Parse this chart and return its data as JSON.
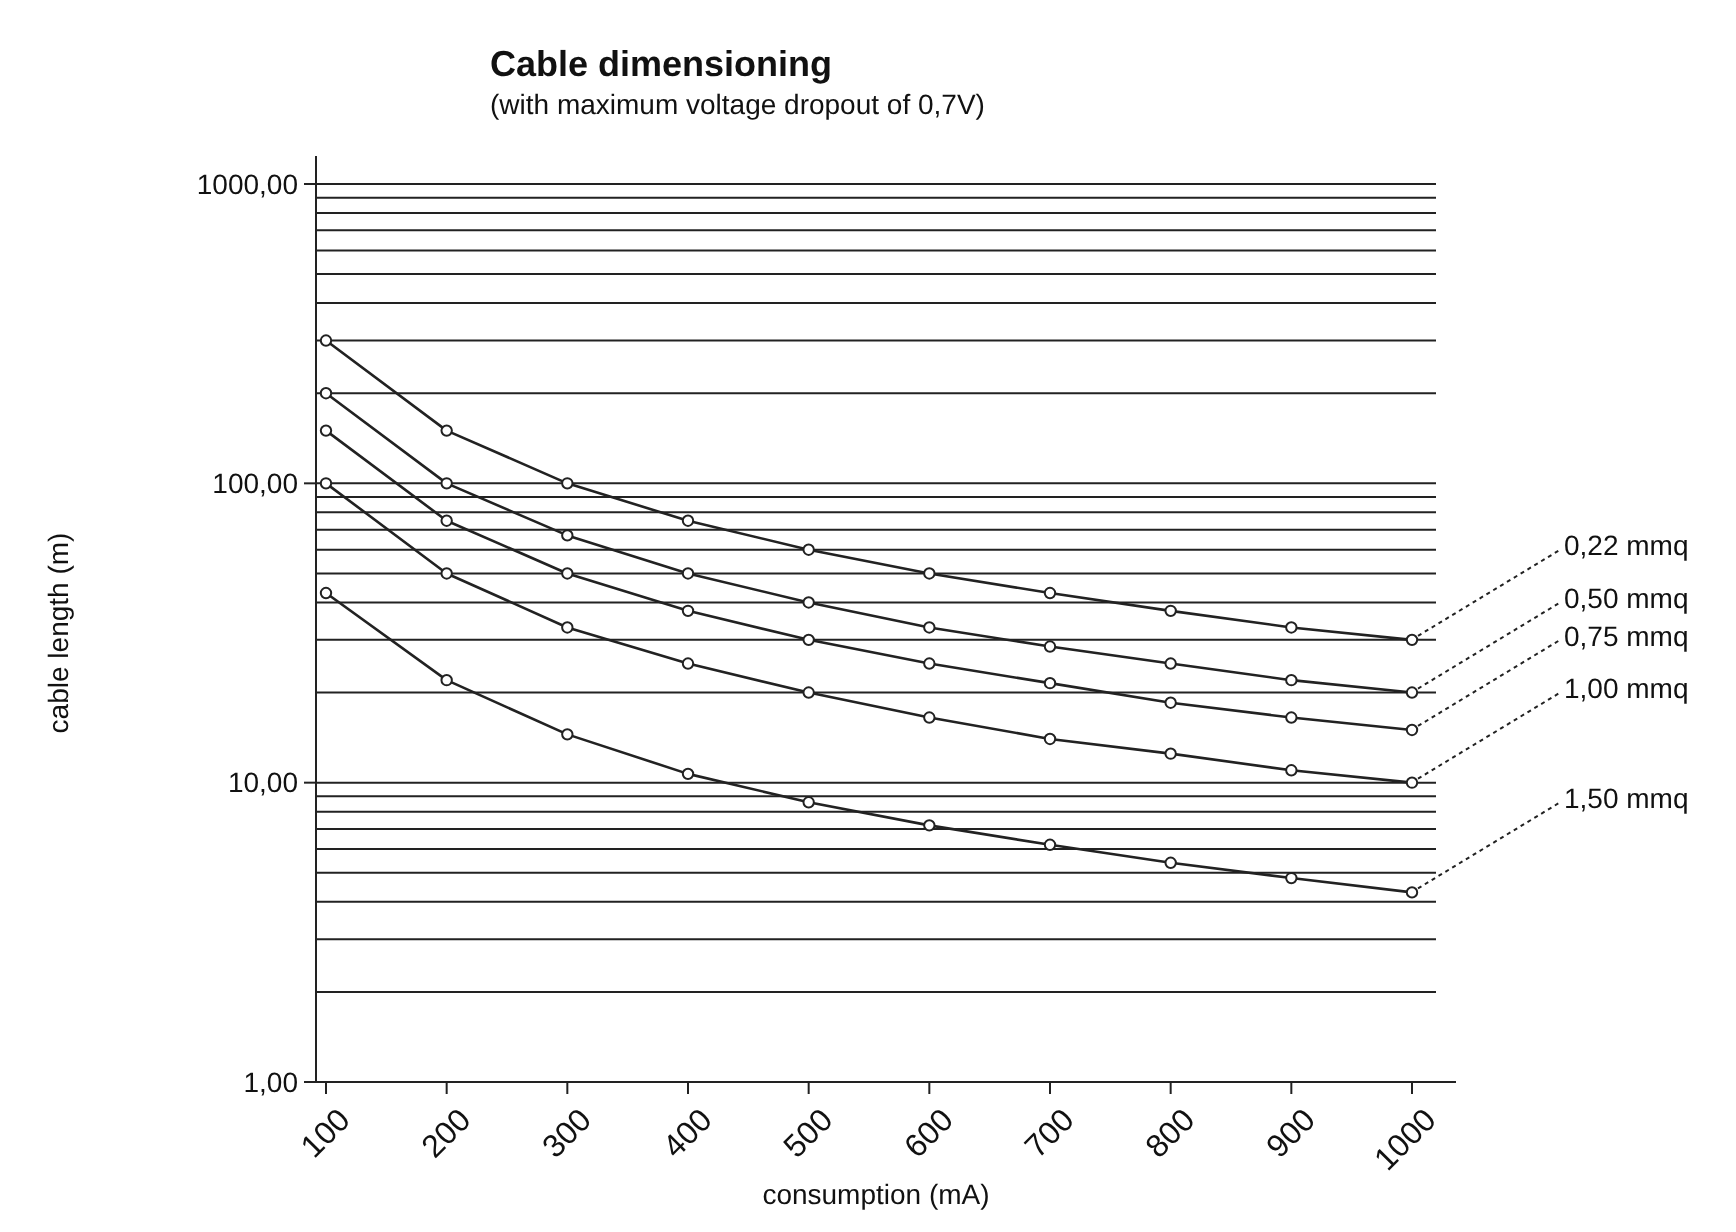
{
  "chart_data": {
    "type": "line",
    "title": "Cable dimensioning",
    "subtitle": "(with maximum voltage dropout of 0,7V)",
    "xlabel": "consumption (mA)",
    "ylabel": "cable length (m)",
    "categories": [
      "100",
      "200",
      "300",
      "400",
      "500",
      "600",
      "700",
      "800",
      "900",
      "1000"
    ],
    "log": "y",
    "ylim": [
      1,
      1000
    ],
    "yticks": [
      {
        "value": 1,
        "label": "1,00"
      },
      {
        "value": 2,
        "label": null
      },
      {
        "value": 3,
        "label": null
      },
      {
        "value": 4,
        "label": null
      },
      {
        "value": 5,
        "label": null
      },
      {
        "value": 6,
        "label": null
      },
      {
        "value": 7,
        "label": null
      },
      {
        "value": 8,
        "label": null
      },
      {
        "value": 9,
        "label": null
      },
      {
        "value": 10,
        "label": "10,00"
      },
      {
        "value": 20,
        "label": null
      },
      {
        "value": 30,
        "label": null
      },
      {
        "value": 40,
        "label": null
      },
      {
        "value": 50,
        "label": null
      },
      {
        "value": 60,
        "label": null
      },
      {
        "value": 70,
        "label": null
      },
      {
        "value": 80,
        "label": null
      },
      {
        "value": 90,
        "label": null
      },
      {
        "value": 100,
        "label": "100,00"
      },
      {
        "value": 200,
        "label": null
      },
      {
        "value": 300,
        "label": null
      },
      {
        "value": 400,
        "label": null
      },
      {
        "value": 500,
        "label": null
      },
      {
        "value": 600,
        "label": null
      },
      {
        "value": 700,
        "label": null
      },
      {
        "value": 800,
        "label": null
      },
      {
        "value": 900,
        "label": null
      },
      {
        "value": 1000,
        "label": "1000,00"
      }
    ],
    "grid": "y",
    "marker": "circle",
    "line_style": "solid",
    "series": [
      {
        "name": "0,22 mmq",
        "color": "#222222",
        "values": [
          300,
          150,
          100,
          75,
          60,
          50,
          43,
          37.5,
          33,
          30
        ]
      },
      {
        "name": "0,50 mmq",
        "color": "#222222",
        "values": [
          200,
          100,
          67,
          50,
          40,
          33,
          28.5,
          25,
          22,
          20
        ]
      },
      {
        "name": "0,75 mmq",
        "color": "#222222",
        "values": [
          150,
          75,
          50,
          37.5,
          30,
          25,
          21.5,
          18.5,
          16.5,
          15
        ]
      },
      {
        "name": "1,00 mmq",
        "color": "#222222",
        "values": [
          100,
          50,
          33,
          25,
          20,
          16.5,
          14,
          12.5,
          11,
          10
        ]
      },
      {
        "name": "1,50 mmq",
        "color": "#222222",
        "values": [
          43,
          22,
          14.5,
          10.7,
          8.6,
          7.2,
          6.2,
          5.4,
          4.8,
          4.3
        ]
      }
    ]
  }
}
